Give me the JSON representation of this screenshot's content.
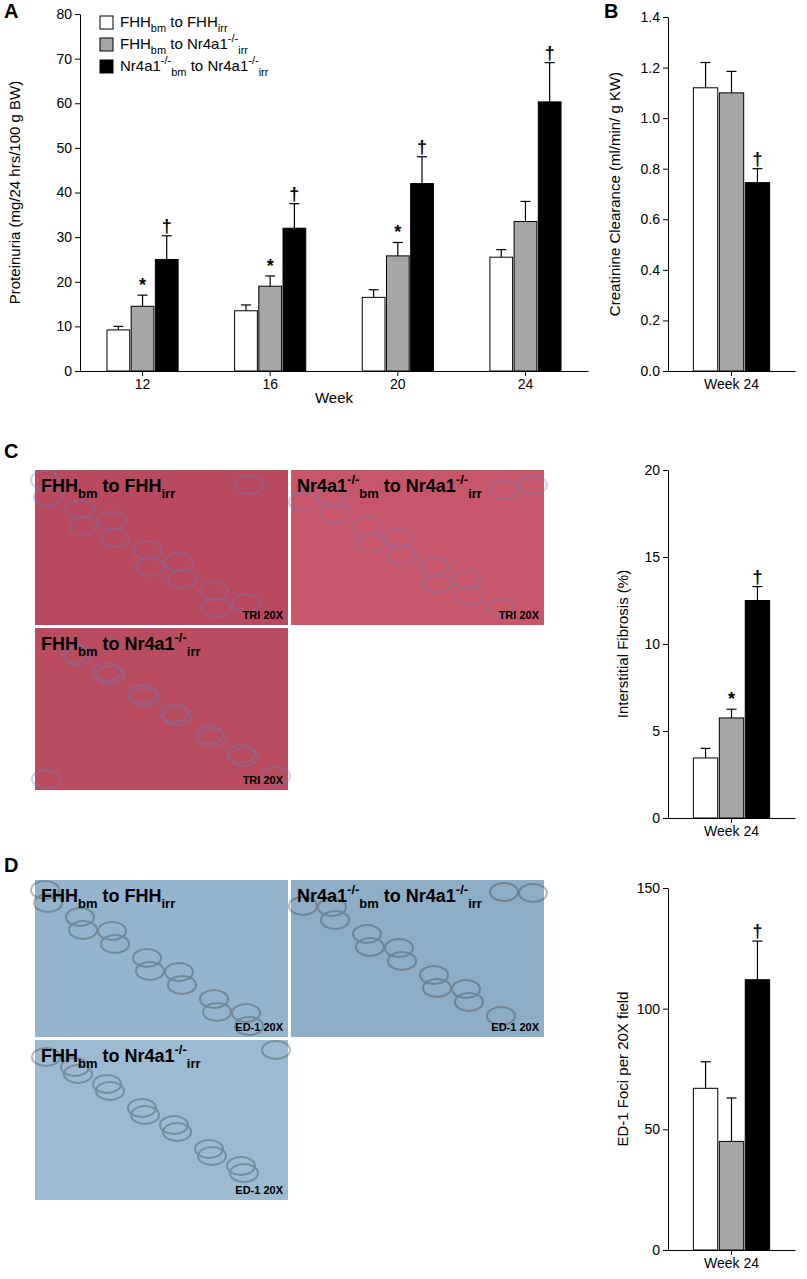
{
  "chart_data": [
    {
      "type": "bar",
      "panel": "A",
      "categories": [
        "12",
        "16",
        "20",
        "24"
      ],
      "x_label": "Week",
      "y_label": "Proteinuria (mg/24 hrs/100 g BW)",
      "ylim": [
        0,
        80
      ],
      "yticks": [
        0,
        10,
        20,
        30,
        40,
        50,
        60,
        70,
        80
      ],
      "legend": "upper left",
      "series": [
        {
          "name": "FHHbm to FHHirr",
          "color": "#ffffff",
          "values": [
            9.2,
            13.5,
            16.5,
            25.5
          ],
          "errors": [
            0.8,
            1.3,
            1.7,
            1.7
          ],
          "significance": [
            null,
            null,
            null,
            null
          ]
        },
        {
          "name": "FHHbm to Nr4a1-/-irr",
          "color": "#a6a6a6",
          "values": [
            14.5,
            19,
            25.8,
            33.5
          ],
          "errors": [
            2.5,
            2.3,
            3,
            4.5
          ],
          "significance": [
            "*",
            "*",
            "*",
            null
          ]
        },
        {
          "name": "Nr4a1-/-bm to Nr4a1-/-irr",
          "color": "#000000",
          "values": [
            25,
            32,
            42,
            60.3
          ],
          "errors": [
            5.3,
            5.5,
            6,
            8.8
          ],
          "significance": [
            "†",
            "†",
            "†",
            "†"
          ]
        }
      ]
    },
    {
      "type": "bar",
      "panel": "B",
      "categories": [
        "Week 24"
      ],
      "y_label": "Creatinine Clearance (ml/min/ g KW)",
      "ylim": [
        0,
        1.4
      ],
      "yticks": [
        {
          "value": 0,
          "label": "0.0"
        },
        {
          "value": 0.2,
          "label": "0.2"
        },
        {
          "value": 0.4,
          "label": "0.4"
        },
        {
          "value": 0.6,
          "label": "0.6"
        },
        {
          "value": 0.8,
          "label": "0.8"
        },
        {
          "value": 1,
          "label": "1.0"
        },
        {
          "value": 1.2,
          "label": "1.2"
        },
        {
          "value": 1.4,
          "label": "1.4"
        }
      ],
      "series": [
        {
          "color": "#ffffff",
          "values": [
            1.12
          ],
          "errors": [
            0.1
          ],
          "significance": [
            null
          ]
        },
        {
          "color": "#a6a6a6",
          "values": [
            1.1
          ],
          "errors": [
            0.085
          ],
          "significance": [
            null
          ]
        },
        {
          "color": "#000000",
          "values": [
            0.745
          ],
          "errors": [
            0.055
          ],
          "significance": [
            "†"
          ]
        }
      ]
    },
    {
      "type": "bar",
      "panel": "C",
      "categories": [
        "Week 24"
      ],
      "y_label": "Interstitial Fibrosis (%)",
      "ylim": [
        0,
        20
      ],
      "yticks": [
        0,
        5,
        10,
        15,
        20
      ],
      "series": [
        {
          "color": "#ffffff",
          "values": [
            3.45
          ],
          "errors": [
            0.55
          ],
          "significance": [
            null
          ]
        },
        {
          "color": "#a6a6a6",
          "values": [
            5.75
          ],
          "errors": [
            0.5
          ],
          "significance": [
            "*"
          ]
        },
        {
          "color": "#000000",
          "values": [
            12.5
          ],
          "errors": [
            0.8
          ],
          "significance": [
            "†"
          ]
        }
      ]
    },
    {
      "type": "bar",
      "panel": "D",
      "categories": [
        "Week 24"
      ],
      "y_label": "ED-1 Foci per 20X field",
      "ylim": [
        0,
        150
      ],
      "yticks": [
        0,
        50,
        100,
        150
      ],
      "series": [
        {
          "color": "#ffffff",
          "values": [
            67
          ],
          "errors": [
            11
          ],
          "significance": [
            null
          ]
        },
        {
          "color": "#a6a6a6",
          "values": [
            45
          ],
          "errors": [
            18
          ],
          "significance": [
            null
          ]
        },
        {
          "color": "#000000",
          "values": [
            112
          ],
          "errors": [
            16
          ],
          "significance": [
            "†"
          ]
        }
      ]
    }
  ],
  "micrographs": [
    {
      "images": [
        {
          "label": "FHHbm to FHHirr",
          "stain": "TRI 20X"
        },
        {
          "label": "Nr4a1-/-bm to Nr4a1-/-irr",
          "stain": "TRI 20X"
        },
        {
          "label": "FHHbm to Nr4a1-/-irr",
          "stain": "TRI 20X"
        }
      ]
    },
    {
      "images": [
        {
          "label": "FHHbm to FHHirr",
          "stain": "ED-1 20X"
        },
        {
          "label": "Nr4a1-/-bm to Nr4a1-/-irr",
          "stain": "ED-1 20X"
        },
        {
          "label": "FHHbm to Nr4a1-/-irr",
          "stain": "ED-1 20X"
        }
      ]
    }
  ]
}
